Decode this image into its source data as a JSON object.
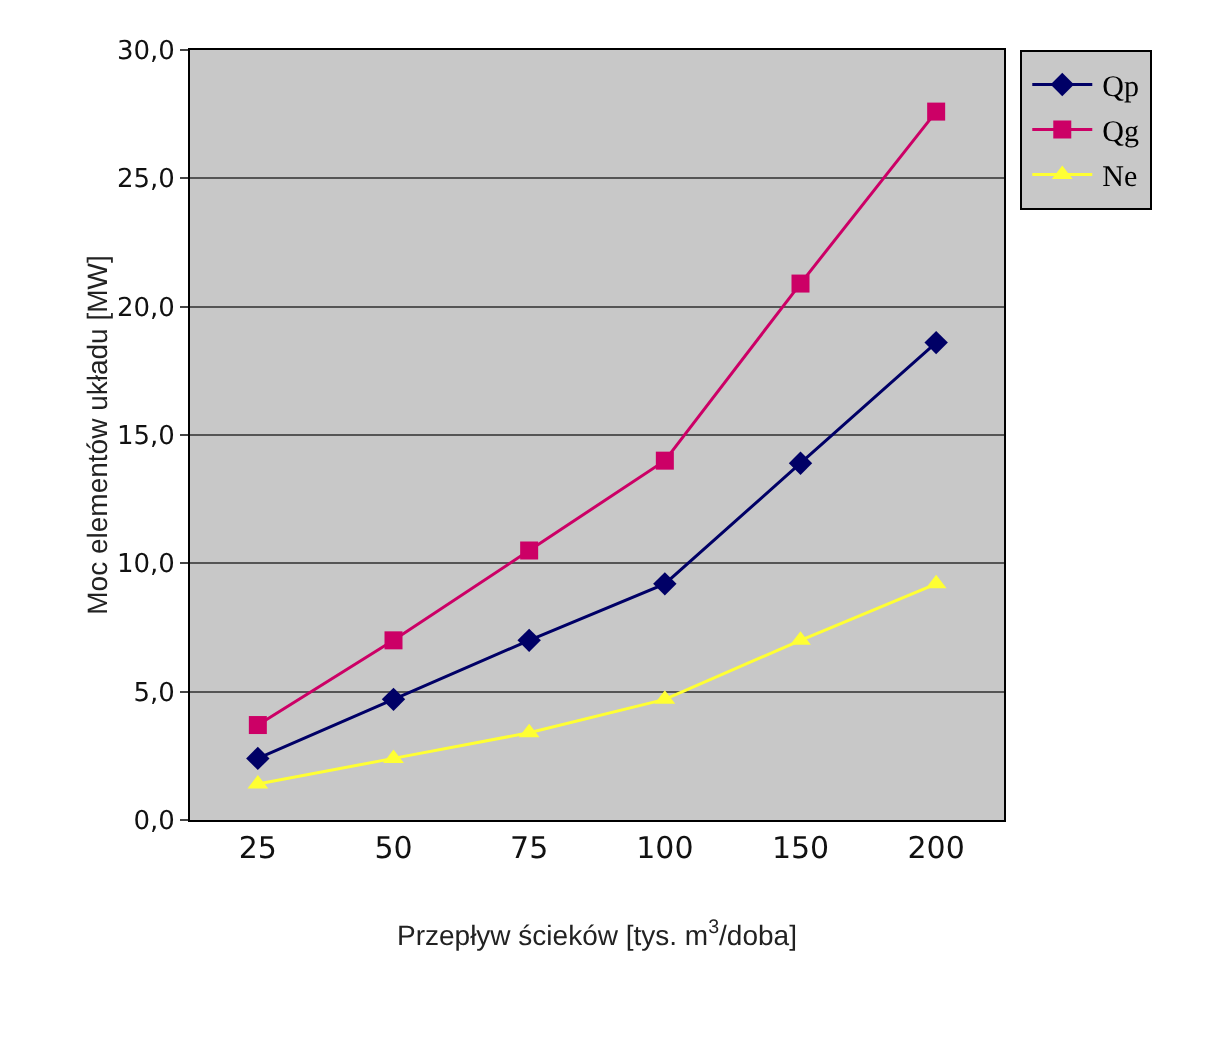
{
  "chart_data": {
    "type": "line",
    "xlabel": "Przepływ ścieków [tys. m$^{3}$/doba]",
    "ylabel": "Moc elementów układu [MW]",
    "categories": [
      "25",
      "50",
      "75",
      "100",
      "150",
      "200"
    ],
    "series": [
      {
        "name": "Qp",
        "color": "#000066",
        "marker": "diamond",
        "values": [
          2.4,
          4.7,
          7.0,
          9.2,
          13.9,
          18.6
        ]
      },
      {
        "name": "Qg",
        "color": "#cc0066",
        "marker": "square",
        "values": [
          3.7,
          7.0,
          10.5,
          14.0,
          20.9,
          27.6
        ]
      },
      {
        "name": "Ne",
        "color": "#ffff33",
        "marker": "triangle",
        "values": [
          1.4,
          2.4,
          3.4,
          4.7,
          7.0,
          9.2
        ]
      }
    ],
    "ylim": [
      0,
      30
    ],
    "yticks": [
      {
        "value": 0,
        "label": "0,0"
      },
      {
        "value": 5,
        "label": "5,0"
      },
      {
        "value": 10,
        "label": "10,0"
      },
      {
        "value": 15,
        "label": "15,0"
      },
      {
        "value": 20,
        "label": "20,0"
      },
      {
        "value": 25,
        "label": "25,0"
      },
      {
        "value": 30,
        "label": "30,0"
      }
    ],
    "grid": "y",
    "legend": "top right",
    "line_style": "solid"
  }
}
